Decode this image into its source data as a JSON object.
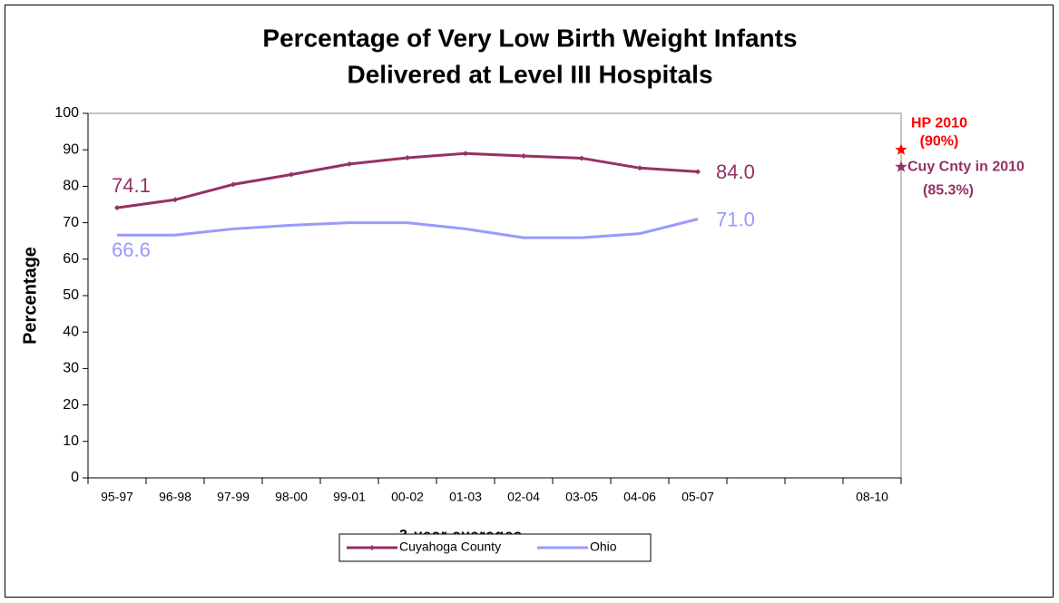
{
  "chart_data": {
    "type": "line",
    "title": [
      "Percentage of Very Low Birth Weight Infants",
      "Delivered at Level III Hospitals"
    ],
    "y_label": "Percentage",
    "x_label": "3-year averages",
    "categories": [
      "95-97",
      "96-98",
      "97-99",
      "98-00",
      "99-01",
      "00-02",
      "01-03",
      "02-04",
      "03-05",
      "04-06",
      "05-07",
      null,
      null,
      "08-10"
    ],
    "series": [
      {
        "name": "Cuyahoga County",
        "color": "#953163",
        "markers": true,
        "values": [
          74.1,
          76.3,
          80.5,
          83.2,
          86.1,
          87.8,
          89.0,
          88.3,
          87.7,
          85.0,
          84.0,
          null,
          null,
          null
        ],
        "value_labels": [
          "74.1",
          null,
          null,
          null,
          null,
          null,
          null,
          null,
          null,
          null,
          "84.0",
          null,
          null,
          null
        ]
      },
      {
        "name": "Ohio",
        "color": "#9999ff",
        "markers": false,
        "values": [
          66.6,
          66.6,
          68.3,
          69.3,
          70.0,
          70.0,
          68.3,
          65.9,
          65.9,
          67.0,
          71.0,
          null,
          null,
          null
        ],
        "value_labels": [
          "66.6",
          null,
          null,
          null,
          null,
          null,
          null,
          null,
          null,
          null,
          "71.0",
          null,
          null,
          null
        ]
      }
    ],
    "ylim": [
      0,
      100
    ],
    "yticks": [
      0,
      10,
      20,
      30,
      40,
      50,
      60,
      70,
      80,
      90,
      100
    ],
    "grid": false,
    "legend": "bottom",
    "annotations": [
      {
        "lines": [
          "HP 2010",
          "(90%)"
        ],
        "value": 90,
        "color": "#ff0000"
      },
      {
        "lines": [
          "Cuy Cnty in 2010",
          "(85.3%)"
        ],
        "value": 85.3,
        "color": "#953163"
      }
    ]
  }
}
